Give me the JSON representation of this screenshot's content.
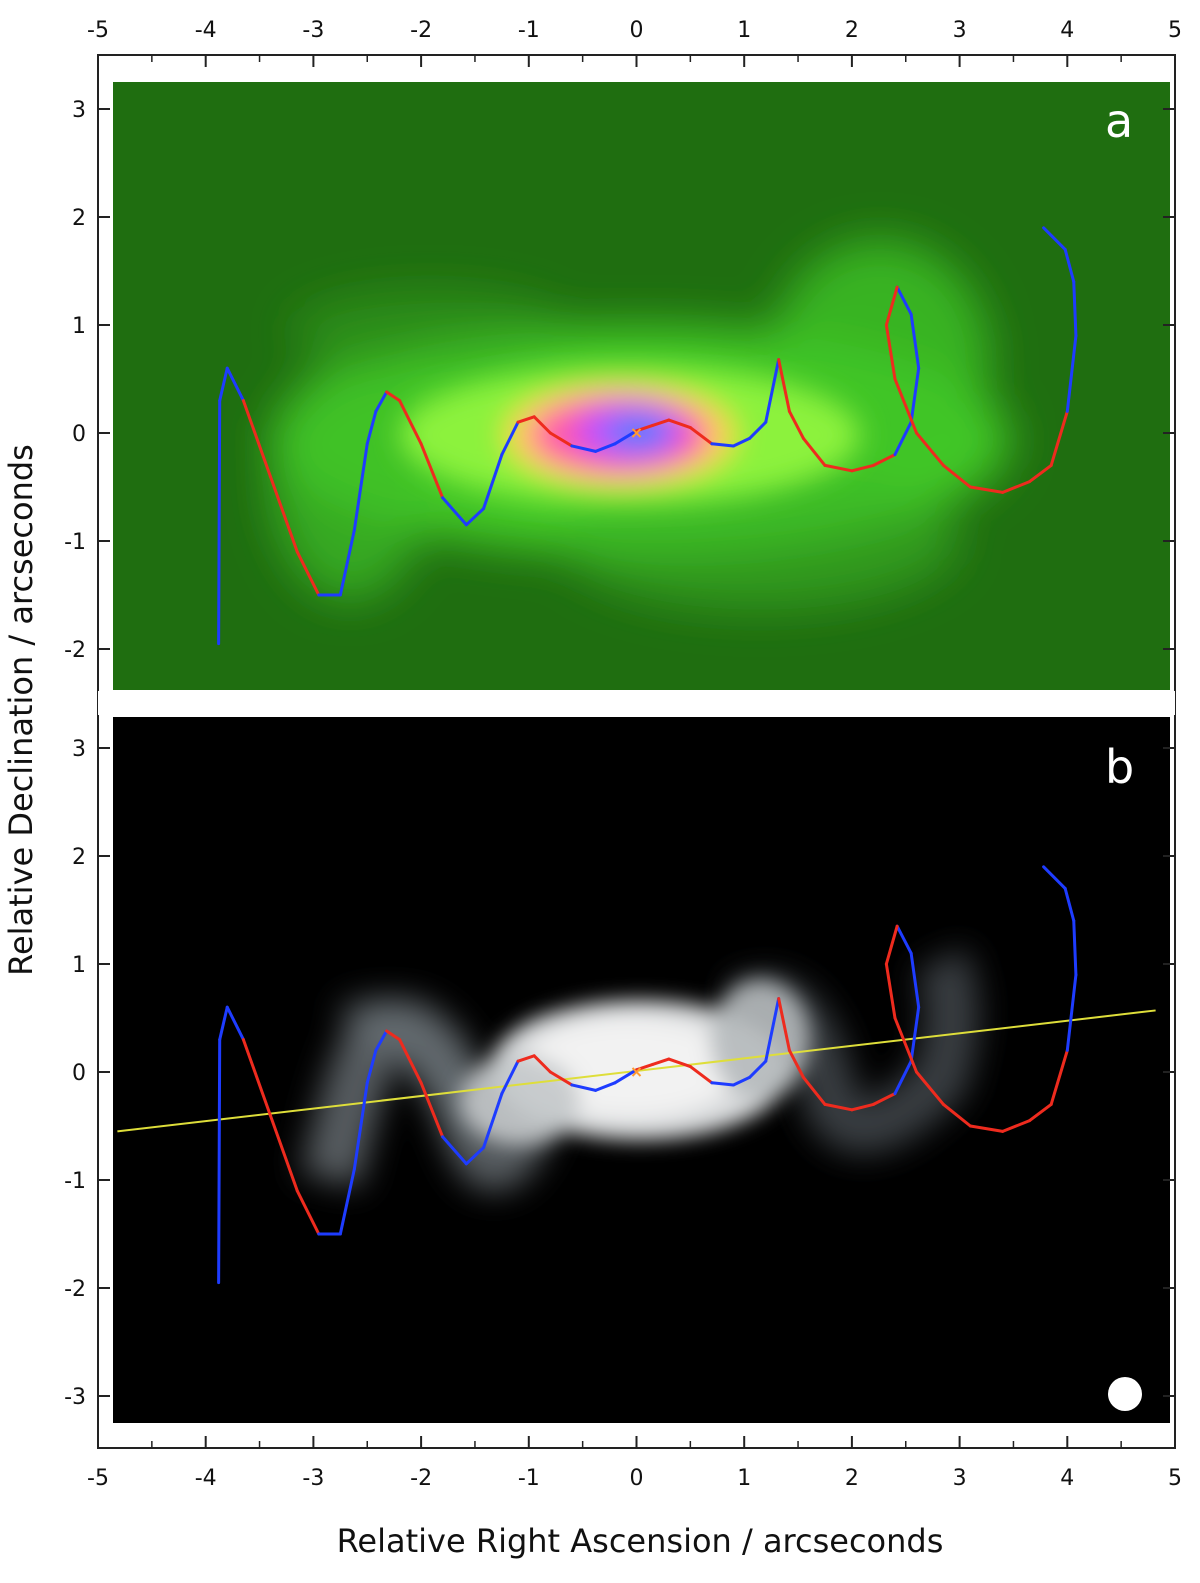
{
  "figure": {
    "xlabel": "Relative Right Ascension / arcseconds",
    "ylabel": "Relative Declination / arcseconds"
  },
  "chart_data": [
    {
      "type": "heatmap",
      "panel_label": "a",
      "colormap": "green-to-magenta-to-blue",
      "background_color": "#1f6e10",
      "xlim": [
        -5,
        5
      ],
      "ylim": [
        -2.4,
        3.25
      ],
      "xticks": [
        -5,
        -4,
        -3,
        -2,
        -1,
        0,
        1,
        2,
        3,
        4,
        5
      ],
      "yticks": [
        -2,
        -1,
        0,
        1,
        2,
        3
      ],
      "center_marker": "x",
      "series": [
        {
          "style": "precessing-jet-model",
          "colors": [
            "#1e3cff",
            "#ee2b1e"
          ],
          "x": [
            -3.88,
            -3.87,
            -3.8,
            -3.65,
            -3.4,
            -3.15,
            -2.95,
            -2.75,
            -2.62,
            -2.5,
            -2.42,
            -2.32,
            -2.2,
            -2.0,
            -1.8,
            -1.58,
            -1.42,
            -1.25,
            -1.1,
            -0.95,
            -0.8,
            -0.6,
            -0.38,
            -0.2,
            0.0,
            0.15,
            0.3,
            0.5,
            0.7,
            0.9,
            1.05,
            1.2,
            1.32,
            1.42,
            1.55,
            1.75,
            2.0,
            2.2,
            2.4,
            2.55,
            2.62,
            2.55,
            2.42,
            2.32,
            2.4,
            2.6,
            2.85,
            3.1,
            3.4,
            3.65,
            3.85,
            4.0,
            4.08,
            4.06,
            3.98,
            3.78
          ],
          "y": [
            -1.95,
            0.3,
            0.6,
            0.3,
            -0.4,
            -1.1,
            -1.5,
            -1.5,
            -0.9,
            -0.1,
            0.2,
            0.38,
            0.3,
            -0.1,
            -0.6,
            -0.85,
            -0.7,
            -0.2,
            0.1,
            0.15,
            0.0,
            -0.12,
            -0.17,
            -0.1,
            0.02,
            0.07,
            0.12,
            0.05,
            -0.1,
            -0.12,
            -0.05,
            0.1,
            0.68,
            0.2,
            -0.05,
            -0.3,
            -0.35,
            -0.3,
            -0.2,
            0.1,
            0.6,
            1.1,
            1.35,
            1.0,
            0.5,
            0.0,
            -0.3,
            -0.5,
            -0.55,
            -0.45,
            -0.3,
            0.2,
            0.9,
            1.4,
            1.7,
            1.9
          ]
        }
      ]
    },
    {
      "type": "heatmap",
      "panel_label": "b",
      "colormap": "greyscale",
      "background_color": "#000000",
      "xlim": [
        -5,
        5
      ],
      "ylim": [
        -3.25,
        3.25
      ],
      "xticks": [
        -5,
        -4,
        -3,
        -2,
        -1,
        0,
        1,
        2,
        3,
        4,
        5
      ],
      "yticks": [
        -3,
        -2,
        -1,
        0,
        1,
        2,
        3
      ],
      "center_marker": "x",
      "reference_line": {
        "color": "#dede3a",
        "x": [
          -4.82,
          4.82
        ],
        "y": [
          -0.55,
          0.57
        ]
      },
      "beam_marker": "filled-circle",
      "series": [
        {
          "style": "precessing-jet-model",
          "colors": [
            "#1e3cff",
            "#ee2b1e"
          ],
          "x": [
            -3.88,
            -3.87,
            -3.8,
            -3.65,
            -3.4,
            -3.15,
            -2.95,
            -2.75,
            -2.62,
            -2.5,
            -2.42,
            -2.32,
            -2.2,
            -2.0,
            -1.8,
            -1.58,
            -1.42,
            -1.25,
            -1.1,
            -0.95,
            -0.8,
            -0.6,
            -0.38,
            -0.2,
            0.0,
            0.15,
            0.3,
            0.5,
            0.7,
            0.9,
            1.05,
            1.2,
            1.32,
            1.42,
            1.55,
            1.75,
            2.0,
            2.2,
            2.4,
            2.55,
            2.62,
            2.55,
            2.42,
            2.32,
            2.4,
            2.6,
            2.85,
            3.1,
            3.4,
            3.65,
            3.85,
            4.0,
            4.08,
            4.06,
            3.98,
            3.78
          ],
          "y": [
            -1.95,
            0.3,
            0.6,
            0.3,
            -0.4,
            -1.1,
            -1.5,
            -1.5,
            -0.9,
            -0.1,
            0.2,
            0.38,
            0.3,
            -0.1,
            -0.6,
            -0.85,
            -0.7,
            -0.2,
            0.1,
            0.15,
            0.0,
            -0.12,
            -0.17,
            -0.1,
            0.02,
            0.07,
            0.12,
            0.05,
            -0.1,
            -0.12,
            -0.05,
            0.1,
            0.68,
            0.2,
            -0.05,
            -0.3,
            -0.35,
            -0.3,
            -0.2,
            0.1,
            0.6,
            1.1,
            1.35,
            1.0,
            0.5,
            0.0,
            -0.3,
            -0.5,
            -0.55,
            -0.45,
            -0.3,
            0.2,
            0.9,
            1.4,
            1.7,
            1.9
          ]
        }
      ]
    }
  ]
}
